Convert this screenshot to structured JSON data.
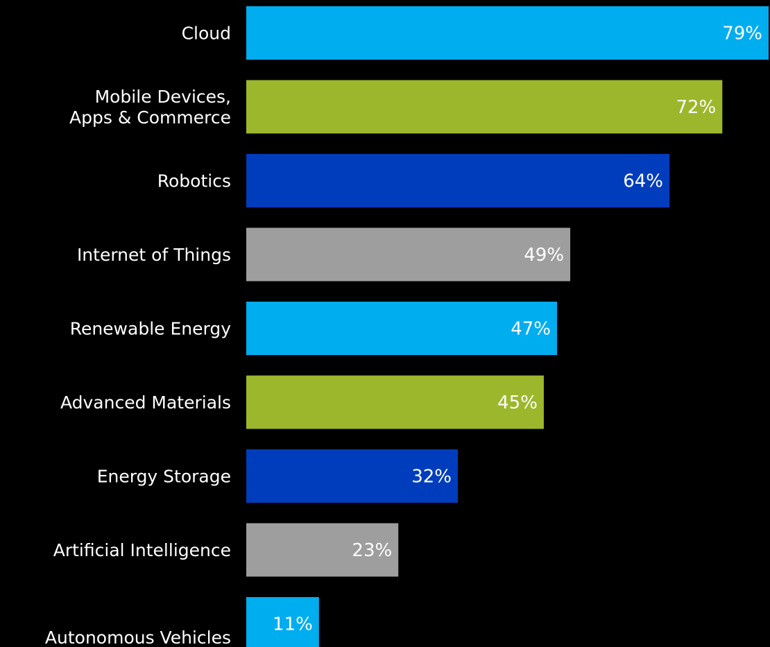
{
  "chart_data": {
    "type": "bar",
    "orientation": "horizontal",
    "title": "",
    "xlabel": "",
    "ylabel": "",
    "grid": false,
    "xlim": [
      0,
      79
    ],
    "categories": [
      "Cloud",
      "Mobile Devices,\nApps & Commerce",
      "Robotics",
      "Internet of Things",
      "Renewable Energy",
      "Advanced Materials",
      "Energy Storage",
      "Artificial Intelligence",
      "Autonomous Vehicles"
    ],
    "values": [
      79,
      72,
      64,
      49,
      47,
      45,
      32,
      23,
      11
    ],
    "value_labels": [
      "79%",
      "72%",
      "64%",
      "49%",
      "47%",
      "45%",
      "32%",
      "23%",
      "11%"
    ],
    "colors": [
      "#00adef",
      "#9cb72b",
      "#003dbd",
      "#9e9e9e",
      "#00adef",
      "#9cb72b",
      "#003dbd",
      "#9e9e9e",
      "#00adef"
    ]
  }
}
